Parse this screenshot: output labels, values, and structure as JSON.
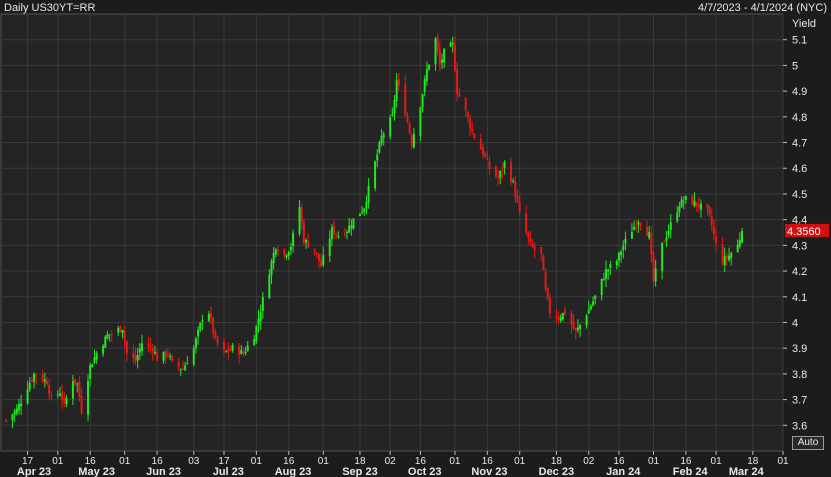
{
  "header": {
    "title": "Daily US30YT=RR",
    "date_range": "4/7/2023 - 4/1/2024 (NYC)"
  },
  "controls": {
    "auto_label": "Auto"
  },
  "colors": {
    "background": "#1c1c1c",
    "plot": "#242424",
    "grid": "#3a3a3a",
    "up": "#22e822",
    "down": "#e81818",
    "last_badge": "#d01010",
    "text": "#e8e8e8"
  },
  "chart_data": {
    "type": "candlestick",
    "title": "Daily US30YT=RR",
    "ylabel": "Yield",
    "ylim": [
      3.5,
      5.2
    ],
    "yticks": [
      3.6,
      3.7,
      3.8,
      3.9,
      4,
      4.1,
      4.2,
      4.3,
      4.4,
      4.5,
      4.6,
      4.7,
      4.8,
      4.9,
      5,
      5.1
    ],
    "ytick_labels": [
      "3.6",
      "3.7",
      "3.8",
      "3.9",
      "4",
      "4.1",
      "4.2",
      "4.3",
      "4.4",
      "4.5",
      "4.6",
      "4.7",
      "4.8",
      "4.9",
      "5",
      "5.1"
    ],
    "x_start": "2023-04-07",
    "x_end": "2024-04-01",
    "day_ticks": [
      {
        "date": "2023-04-17",
        "label": "17"
      },
      {
        "date": "2023-05-01",
        "label": "01"
      },
      {
        "date": "2023-05-16",
        "label": "16"
      },
      {
        "date": "2023-06-01",
        "label": "01"
      },
      {
        "date": "2023-06-16",
        "label": "16"
      },
      {
        "date": "2023-07-03",
        "label": "03"
      },
      {
        "date": "2023-07-17",
        "label": "17"
      },
      {
        "date": "2023-08-01",
        "label": "01"
      },
      {
        "date": "2023-08-16",
        "label": "16"
      },
      {
        "date": "2023-09-01",
        "label": "01"
      },
      {
        "date": "2023-09-18",
        "label": "18"
      },
      {
        "date": "2023-10-02",
        "label": "02"
      },
      {
        "date": "2023-10-16",
        "label": "16"
      },
      {
        "date": "2023-11-01",
        "label": "01"
      },
      {
        "date": "2023-11-16",
        "label": "16"
      },
      {
        "date": "2023-12-01",
        "label": "01"
      },
      {
        "date": "2023-12-18",
        "label": "18"
      },
      {
        "date": "2024-01-02",
        "label": "02"
      },
      {
        "date": "2024-01-16",
        "label": "16"
      },
      {
        "date": "2024-02-01",
        "label": "01"
      },
      {
        "date": "2024-02-16",
        "label": "16"
      },
      {
        "date": "2024-03-01",
        "label": "01"
      },
      {
        "date": "2024-03-18",
        "label": "18"
      },
      {
        "date": "2024-04-01",
        "label": "01"
      }
    ],
    "month_labels": [
      {
        "date": "2023-04-20",
        "label": "Apr 23"
      },
      {
        "date": "2023-05-19",
        "label": "May 23"
      },
      {
        "date": "2023-06-19",
        "label": "Jun 23"
      },
      {
        "date": "2023-07-19",
        "label": "Jul 23"
      },
      {
        "date": "2023-08-18",
        "label": "Aug 23"
      },
      {
        "date": "2023-09-18",
        "label": "Sep 23"
      },
      {
        "date": "2023-10-18",
        "label": "Oct 23"
      },
      {
        "date": "2023-11-17",
        "label": "Nov 23"
      },
      {
        "date": "2023-12-18",
        "label": "Dec 23"
      },
      {
        "date": "2024-01-18",
        "label": "Jan 24"
      },
      {
        "date": "2024-02-18",
        "label": "Feb 24"
      },
      {
        "date": "2024-03-15",
        "label": "Mar 24"
      }
    ],
    "last_value": "4.3560",
    "grid": true,
    "close_path": [
      [
        "2023-04-07",
        3.62
      ],
      [
        "2023-04-12",
        3.66
      ],
      [
        "2023-04-17",
        3.75
      ],
      [
        "2023-04-20",
        3.8
      ],
      [
        "2023-04-26",
        3.77
      ],
      [
        "2023-04-28",
        3.7
      ],
      [
        "2023-05-02",
        3.73
      ],
      [
        "2023-05-04",
        3.68
      ],
      [
        "2023-05-08",
        3.78
      ],
      [
        "2023-05-10",
        3.76
      ],
      [
        "2023-05-12",
        3.66
      ],
      [
        "2023-05-16",
        3.83
      ],
      [
        "2023-05-19",
        3.88
      ],
      [
        "2023-05-24",
        3.95
      ],
      [
        "2023-05-31",
        3.98
      ],
      [
        "2023-06-02",
        3.88
      ],
      [
        "2023-06-06",
        3.85
      ],
      [
        "2023-06-09",
        3.92
      ],
      [
        "2023-06-14",
        3.9
      ],
      [
        "2023-06-16",
        3.86
      ],
      [
        "2023-06-21",
        3.88
      ],
      [
        "2023-06-23",
        3.84
      ],
      [
        "2023-06-28",
        3.82
      ],
      [
        "2023-07-03",
        3.9
      ],
      [
        "2023-07-07",
        4.02
      ],
      [
        "2023-07-10",
        4.04
      ],
      [
        "2023-07-13",
        3.93
      ],
      [
        "2023-07-17",
        3.88
      ],
      [
        "2023-07-21",
        3.9
      ],
      [
        "2023-07-26",
        3.88
      ],
      [
        "2023-07-31",
        3.95
      ],
      [
        "2023-08-03",
        4.05
      ],
      [
        "2023-08-07",
        4.2
      ],
      [
        "2023-08-10",
        4.3
      ],
      [
        "2023-08-14",
        4.26
      ],
      [
        "2023-08-17",
        4.3
      ],
      [
        "2023-08-21",
        4.45
      ],
      [
        "2023-08-23",
        4.32
      ],
      [
        "2023-08-28",
        4.28
      ],
      [
        "2023-08-31",
        4.22
      ],
      [
        "2023-09-05",
        4.36
      ],
      [
        "2023-09-08",
        4.34
      ],
      [
        "2023-09-12",
        4.36
      ],
      [
        "2023-09-15",
        4.4
      ],
      [
        "2023-09-20",
        4.45
      ],
      [
        "2023-09-25",
        4.62
      ],
      [
        "2023-09-28",
        4.72
      ],
      [
        "2023-10-03",
        4.8
      ],
      [
        "2023-10-05",
        4.94
      ],
      [
        "2023-10-09",
        4.82
      ],
      [
        "2023-10-12",
        4.7
      ],
      [
        "2023-10-16",
        4.85
      ],
      [
        "2023-10-19",
        4.98
      ],
      [
        "2023-10-23",
        5.1
      ],
      [
        "2023-10-25",
        5.0
      ],
      [
        "2023-10-27",
        5.05
      ],
      [
        "2023-10-31",
        5.08
      ],
      [
        "2023-11-02",
        4.9
      ],
      [
        "2023-11-06",
        4.82
      ],
      [
        "2023-11-09",
        4.74
      ],
      [
        "2023-11-14",
        4.66
      ],
      [
        "2023-11-17",
        4.6
      ],
      [
        "2023-11-21",
        4.56
      ],
      [
        "2023-11-24",
        4.62
      ],
      [
        "2023-11-28",
        4.54
      ],
      [
        "2023-12-01",
        4.42
      ],
      [
        "2023-12-06",
        4.3
      ],
      [
        "2023-12-11",
        4.26
      ],
      [
        "2023-12-13",
        4.12
      ],
      [
        "2023-12-15",
        4.04
      ],
      [
        "2023-12-19",
        4.02
      ],
      [
        "2023-12-22",
        4.04
      ],
      [
        "2023-12-27",
        3.96
      ],
      [
        "2024-01-02",
        4.05
      ],
      [
        "2024-01-05",
        4.1
      ],
      [
        "2024-01-10",
        4.2
      ],
      [
        "2024-01-15",
        4.24
      ],
      [
        "2024-01-18",
        4.3
      ],
      [
        "2024-01-22",
        4.36
      ],
      [
        "2024-01-25",
        4.4
      ],
      [
        "2024-01-30",
        4.34
      ],
      [
        "2024-02-01",
        4.16
      ],
      [
        "2024-02-05",
        4.3
      ],
      [
        "2024-02-08",
        4.36
      ],
      [
        "2024-02-13",
        4.46
      ],
      [
        "2024-02-16",
        4.48
      ],
      [
        "2024-02-21",
        4.46
      ],
      [
        "2024-02-26",
        4.43
      ],
      [
        "2024-02-28",
        4.38
      ],
      [
        "2024-03-01",
        4.3
      ],
      [
        "2024-03-04",
        4.24
      ],
      [
        "2024-03-07",
        4.26
      ],
      [
        "2024-03-11",
        4.3
      ],
      [
        "2024-03-13",
        4.356
      ]
    ]
  }
}
